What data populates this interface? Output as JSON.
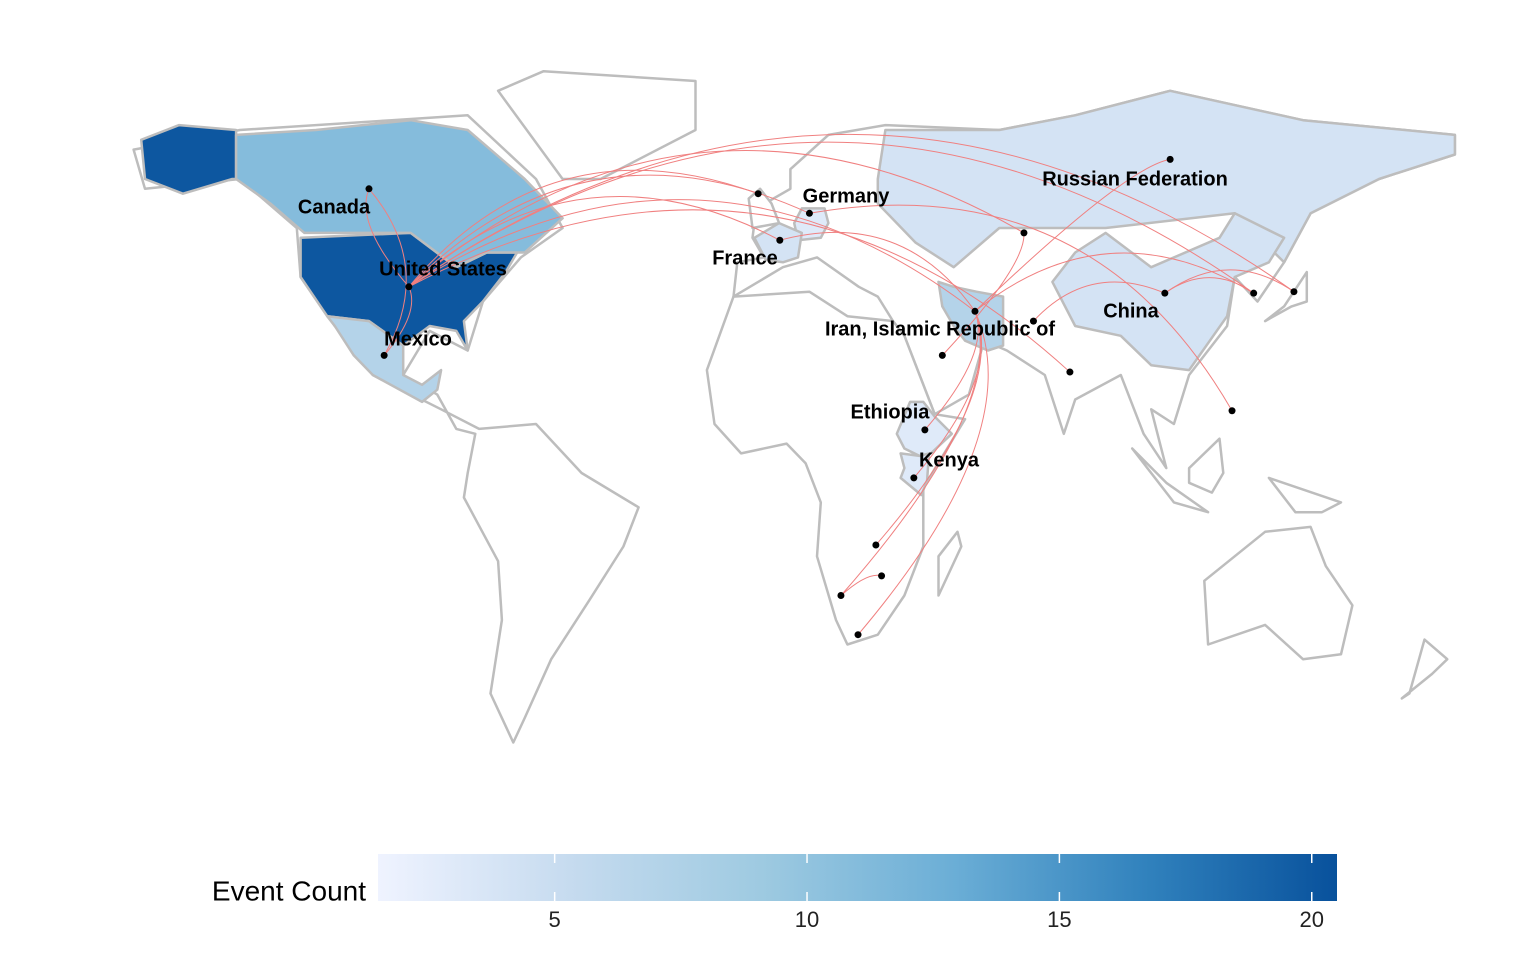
{
  "chart_data": {
    "type": "choropleth",
    "legend_title": "Event Count",
    "colorbar": {
      "lim": [
        1.5,
        20.5
      ],
      "ticks": [
        5,
        10,
        15,
        20
      ],
      "colors": [
        "#eff3ff",
        "#c6dbef",
        "#9ecae1",
        "#6baed6",
        "#3182bd",
        "#08519c"
      ]
    },
    "regions": [
      {
        "name": "United States",
        "value": 20
      },
      {
        "name": "Canada",
        "value": 11
      },
      {
        "name": "Mexico",
        "value": 7
      },
      {
        "name": "Russian Federation",
        "value": 4
      },
      {
        "name": "China",
        "value": 4
      },
      {
        "name": "Iran, Islamic Republic of",
        "value": 7
      },
      {
        "name": "Germany",
        "value": 3
      },
      {
        "name": "France",
        "value": 4
      },
      {
        "name": "Ethiopia",
        "value": 3
      },
      {
        "name": "Kenya",
        "value": 3
      }
    ],
    "link_color": "#f08080",
    "points": [
      {
        "lon": -106,
        "lat": 58
      },
      {
        "lon": -95.5,
        "lat": 38
      },
      {
        "lon": -102,
        "lat": 24
      },
      {
        "lon": 2.2,
        "lat": 47.5
      },
      {
        "lon": 10,
        "lat": 53
      },
      {
        "lon": -3.5,
        "lat": 57
      },
      {
        "lon": 105,
        "lat": 64
      },
      {
        "lon": 66.5,
        "lat": 49
      },
      {
        "lon": 53.6,
        "lat": 33
      },
      {
        "lon": 69,
        "lat": 31
      },
      {
        "lon": 78.6,
        "lat": 20.6
      },
      {
        "lon": 45,
        "lat": 24
      },
      {
        "lon": 103.6,
        "lat": 36.7
      },
      {
        "lon": 127,
        "lat": 36.7
      },
      {
        "lon": 137.6,
        "lat": 37
      },
      {
        "lon": 121.3,
        "lat": 12.7
      },
      {
        "lon": 40.4,
        "lat": 8.8
      },
      {
        "lon": 37.5,
        "lat": -1
      },
      {
        "lon": 27.5,
        "lat": -14.7
      },
      {
        "lon": 29,
        "lat": -21
      },
      {
        "lon": 18.3,
        "lat": -25
      },
      {
        "lon": 22.8,
        "lat": -33
      }
    ],
    "links": [
      [
        1,
        0
      ],
      [
        1,
        2
      ],
      [
        1,
        5
      ],
      [
        1,
        4
      ],
      [
        1,
        3
      ],
      [
        1,
        14
      ],
      [
        1,
        8
      ],
      [
        1,
        10
      ],
      [
        1,
        13
      ],
      [
        1,
        7
      ],
      [
        8,
        16
      ],
      [
        8,
        17
      ],
      [
        8,
        18
      ],
      [
        8,
        20
      ],
      [
        8,
        21
      ],
      [
        8,
        13
      ],
      [
        6,
        8
      ],
      [
        7,
        11
      ],
      [
        4,
        15
      ],
      [
        3,
        8
      ],
      [
        12,
        13
      ],
      [
        12,
        14
      ],
      [
        19,
        20
      ],
      [
        0,
        2
      ],
      [
        9,
        12
      ]
    ]
  }
}
